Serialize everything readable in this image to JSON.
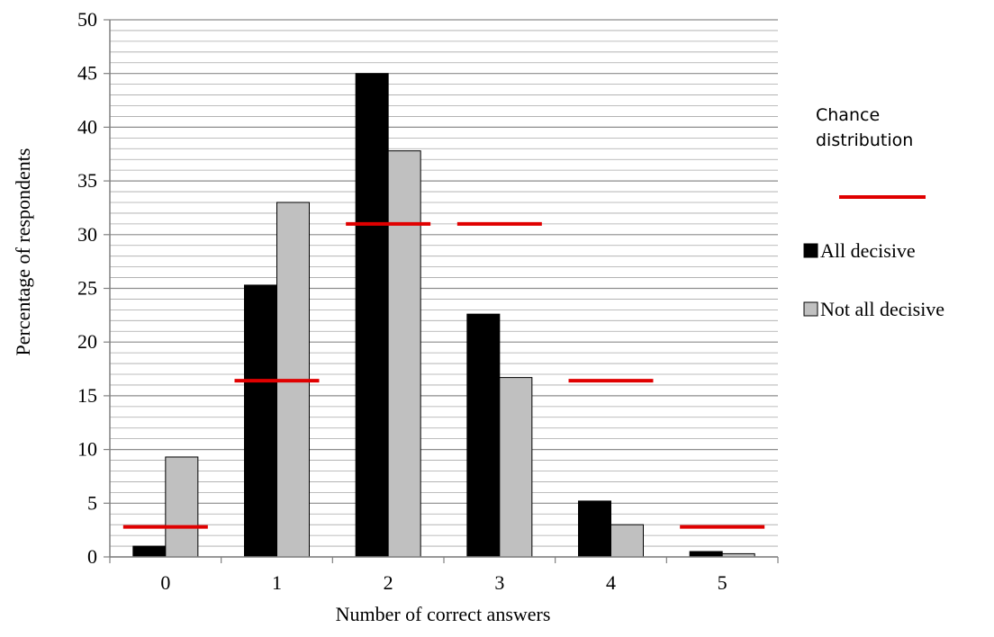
{
  "chart_data": {
    "type": "bar",
    "xlabel": "Number of correct answers",
    "ylabel": "Percentage of respondents",
    "ylim": [
      0,
      50
    ],
    "y_major_ticks": [
      0,
      5,
      10,
      15,
      20,
      25,
      30,
      35,
      40,
      45,
      50
    ],
    "y_minor_step": 1,
    "grid": true,
    "legend_position": "right",
    "categories": [
      "0",
      "1",
      "2",
      "3",
      "4",
      "5"
    ],
    "series": [
      {
        "name": "All decisive",
        "color": "#000000",
        "values": [
          1.0,
          25.3,
          45.0,
          22.6,
          5.2,
          0.5
        ]
      },
      {
        "name": "Not all decisive",
        "color": "#c0c0c0",
        "values": [
          9.3,
          33.0,
          37.8,
          16.7,
          3.0,
          0.3
        ]
      }
    ],
    "reference_lines": {
      "name": "Chance distribution",
      "color": "#e00000",
      "values": [
        2.8,
        16.4,
        31.0,
        31.0,
        16.4,
        2.8
      ]
    }
  }
}
